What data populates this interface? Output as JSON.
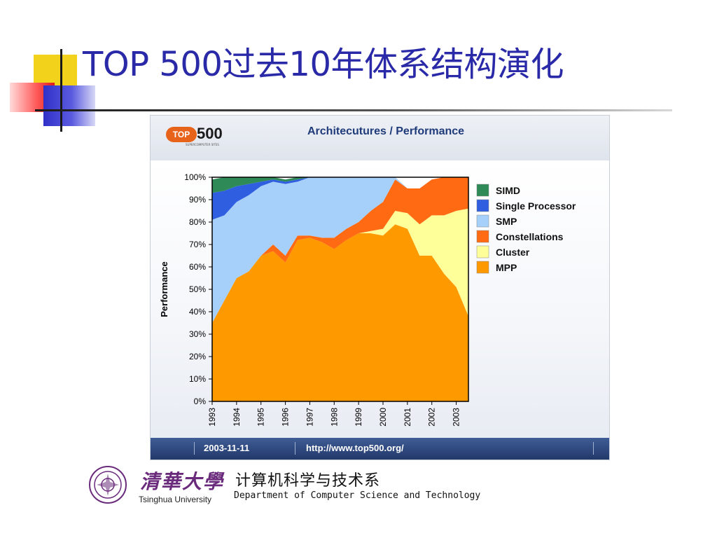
{
  "slide": {
    "title": "TOP 500过去10年体系结构演化"
  },
  "panel": {
    "logo_top": "TOP",
    "logo_500": "500",
    "logo_sub": "SUPERCOMPUTER SITES",
    "header_title": "Architecutures / Performance",
    "footer_date": "2003-11-11",
    "footer_url": "http://www.top500.org/"
  },
  "branding": {
    "university_cn": "清華大學",
    "university_en": "Tsinghua University",
    "department_cn": "计算机科学与技术系",
    "department_en": "Department of Computer Science and Technology"
  },
  "colors": {
    "title": "#2a2aa8",
    "SIMD": "#2e8b57",
    "Single Processor": "#2f5fe0",
    "SMP": "#a6d0fa",
    "Constellations": "#ff6a13",
    "Cluster": "#ffff99",
    "MPP": "#ff9900"
  },
  "chart_data": {
    "type": "area",
    "stacked": true,
    "percent": true,
    "ylabel": "Performance",
    "xlabel": "",
    "ylim": [
      0,
      100
    ],
    "y_ticks": [
      "0%",
      "10%",
      "20%",
      "30%",
      "40%",
      "50%",
      "60%",
      "70%",
      "80%",
      "90%",
      "100%"
    ],
    "x_ticks": [
      "1993",
      "1994",
      "1995",
      "1996",
      "1997",
      "1998",
      "1999",
      "2000",
      "2001",
      "2002",
      "2003"
    ],
    "x": [
      1993.0,
      1993.5,
      1994.0,
      1994.5,
      1995.0,
      1995.5,
      1996.0,
      1996.5,
      1997.0,
      1997.5,
      1998.0,
      1998.5,
      1999.0,
      1999.5,
      2000.0,
      2000.5,
      2001.0,
      2001.5,
      2002.0,
      2002.5,
      2003.0,
      2003.5
    ],
    "series": [
      {
        "name": "MPP",
        "values": [
          35,
          45,
          55,
          58,
          65,
          67,
          62,
          72,
          73,
          71,
          68,
          72,
          75,
          75,
          74,
          79,
          77,
          65,
          65,
          57,
          51,
          38
        ]
      },
      {
        "name": "Cluster",
        "values": [
          0,
          0,
          0,
          0,
          0,
          0,
          0,
          0,
          0,
          0,
          0,
          0,
          0,
          1,
          3,
          6,
          7,
          14,
          18,
          26,
          34,
          48
        ]
      },
      {
        "name": "Constellations",
        "values": [
          0,
          0,
          0,
          0,
          0,
          3,
          3,
          2,
          1,
          2,
          5,
          5,
          5,
          9,
          12,
          14,
          11,
          16,
          16,
          17,
          15,
          14
        ]
      },
      {
        "name": "SMP",
        "values": [
          46,
          38,
          34,
          34,
          31,
          28,
          32,
          24,
          26,
          27,
          27,
          23,
          20,
          15,
          11,
          1,
          0,
          0,
          0,
          0,
          0,
          0
        ]
      },
      {
        "name": "Single Processor",
        "values": [
          12,
          11,
          7,
          5,
          2,
          1,
          1,
          1,
          0,
          0,
          0,
          0,
          0,
          0,
          0,
          0,
          0,
          0,
          0,
          0,
          0,
          0
        ]
      },
      {
        "name": "SIMD",
        "values": [
          6,
          6,
          4,
          3,
          2,
          1,
          1,
          1,
          0,
          0,
          0,
          0,
          0,
          0,
          0,
          0,
          0,
          0,
          0,
          0,
          0,
          0
        ]
      }
    ],
    "legend": [
      "SIMD",
      "Single Processor",
      "SMP",
      "Constellations",
      "Cluster",
      "MPP"
    ],
    "legend_position": "right",
    "grid": false
  }
}
